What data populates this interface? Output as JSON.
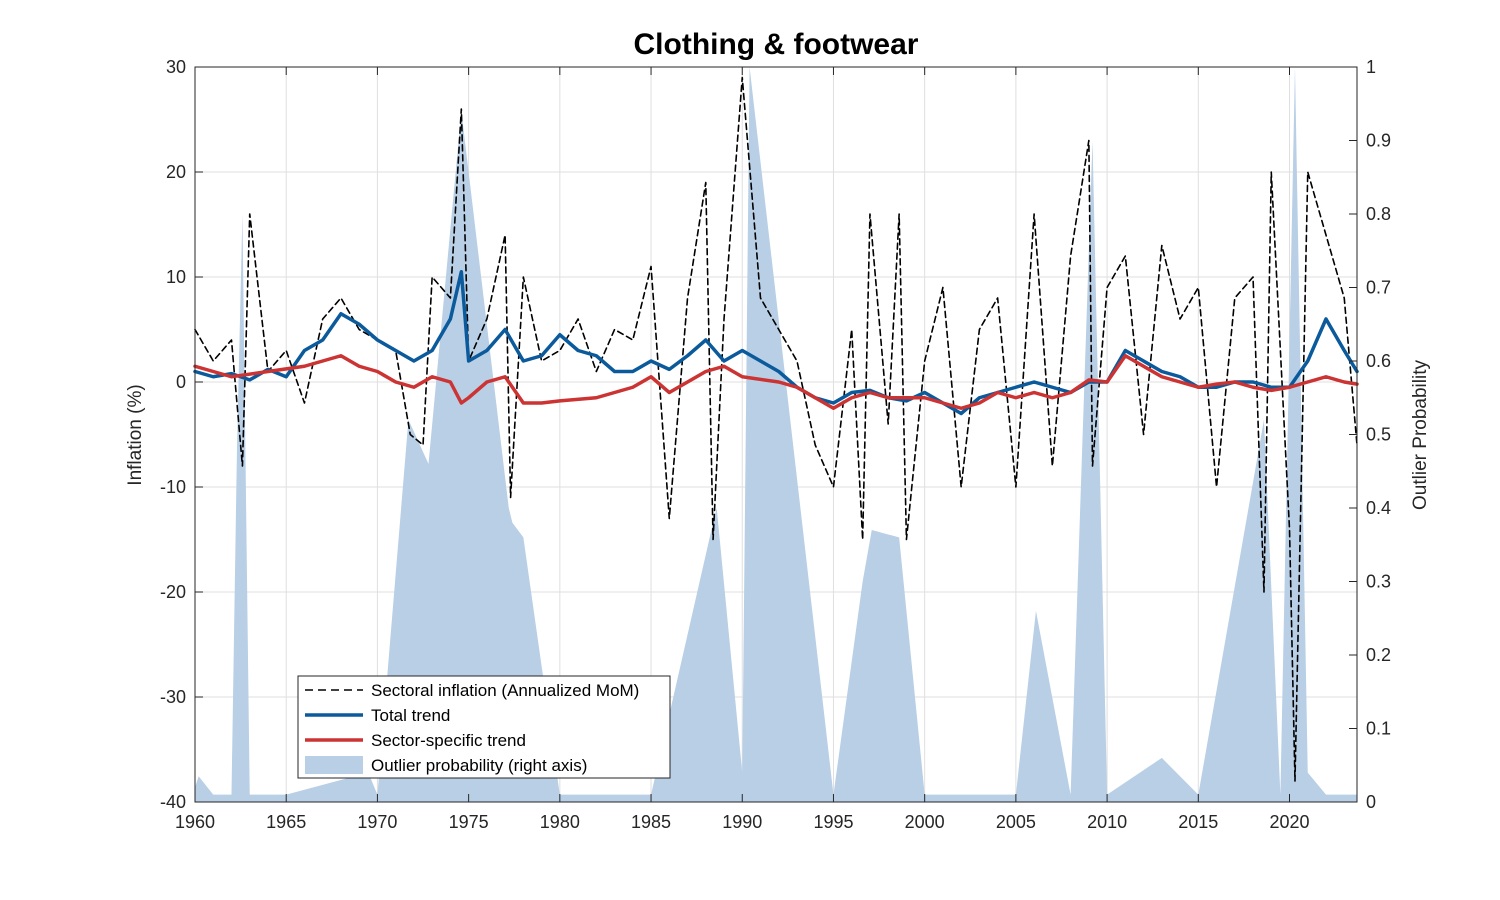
{
  "chart_data": {
    "type": "line",
    "title": "Clothing & footwear",
    "xlabel": "",
    "ylabel": "Inflation (%)",
    "ylabel_right": "Outlier Probability",
    "xlim": [
      1960,
      2023.7
    ],
    "ylim": [
      -40,
      30
    ],
    "ylim_right": [
      0,
      1
    ],
    "x_ticks": [
      1960,
      1965,
      1970,
      1975,
      1980,
      1985,
      1990,
      1995,
      2000,
      2005,
      2010,
      2015,
      2020
    ],
    "y_ticks": [
      -40,
      -30,
      -20,
      -10,
      0,
      10,
      20,
      30
    ],
    "y_ticks_right": [
      0,
      0.1,
      0.2,
      0.3,
      0.4,
      0.5,
      0.6,
      0.7,
      0.8,
      0.9,
      1
    ],
    "grid": true,
    "legend_position": "bottom-left",
    "colors": {
      "sectoral": "#000000",
      "total_trend": "#0a5a9c",
      "sector_trend": "#cc3333",
      "outlier": "#b8cfe6"
    },
    "series": [
      {
        "name": "Sectoral inflation (Annualized MoM)",
        "style": "dashed",
        "x": [
          1960,
          1961,
          1962,
          1962.6,
          1963,
          1964,
          1965,
          1966,
          1967,
          1968,
          1969,
          1970,
          1971,
          1971.8,
          1972.5,
          1973,
          1974,
          1974.6,
          1975,
          1976,
          1977,
          1977.3,
          1978,
          1979,
          1980,
          1981,
          1982,
          1983,
          1984,
          1985,
          1986,
          1987,
          1988,
          1988.4,
          1989,
          1990,
          1991,
          1992,
          1993,
          1994,
          1995,
          1996,
          1996.6,
          1997,
          1998,
          1998.6,
          1999,
          2000,
          2001,
          2002,
          2003,
          2004,
          2005,
          2006,
          2007,
          2008,
          2009,
          2009.2,
          2010,
          2011,
          2012,
          2013,
          2014,
          2015,
          2016,
          2017,
          2018,
          2018.6,
          2019,
          2020,
          2020.3,
          2021,
          2022,
          2023,
          2023.7
        ],
        "y": [
          5,
          2,
          4,
          -8,
          16,
          1,
          3,
          -2,
          6,
          8,
          5,
          4,
          3,
          -5,
          -6,
          10,
          8,
          26,
          2,
          6,
          14,
          -11,
          10,
          2,
          3,
          6,
          1,
          5,
          4,
          11,
          -13,
          8,
          19,
          -15,
          6,
          29,
          8,
          5,
          2,
          -6,
          -10,
          5,
          -15,
          16,
          -4,
          16,
          -15,
          2,
          9,
          -10,
          5,
          8,
          -10,
          16,
          -8,
          12,
          23,
          -8,
          9,
          12,
          -5,
          13,
          6,
          9,
          -10,
          8,
          10,
          -20,
          20,
          -14,
          -38,
          20,
          14,
          8,
          -6
        ]
      },
      {
        "name": "Total trend",
        "style": "solid",
        "x": [
          1960,
          1961,
          1962,
          1963,
          1964,
          1965,
          1966,
          1967,
          1968,
          1969,
          1970,
          1971,
          1972,
          1973,
          1974,
          1974.6,
          1975,
          1976,
          1977,
          1978,
          1979,
          1980,
          1981,
          1982,
          1983,
          1984,
          1985,
          1986,
          1987,
          1988,
          1989,
          1990,
          1991,
          1992,
          1993,
          1994,
          1995,
          1996,
          1997,
          1998,
          1999,
          2000,
          2001,
          2002,
          2003,
          2004,
          2005,
          2006,
          2007,
          2008,
          2009,
          2010,
          2011,
          2012,
          2013,
          2014,
          2015,
          2016,
          2017,
          2018,
          2019,
          2020,
          2021,
          2022,
          2023,
          2023.7
        ],
        "y": [
          1,
          0.5,
          0.8,
          0.2,
          1.2,
          0.5,
          3,
          4,
          6.5,
          5.5,
          4,
          3,
          2,
          3,
          6,
          10.5,
          2,
          3,
          5,
          2,
          2.5,
          4.5,
          3,
          2.5,
          1,
          1,
          2,
          1.2,
          2.5,
          4,
          2,
          3,
          2,
          1,
          -0.5,
          -1.5,
          -2,
          -1,
          -0.8,
          -1.5,
          -1.8,
          -1,
          -2,
          -3,
          -1.5,
          -1,
          -0.5,
          0,
          -0.5,
          -1,
          0,
          0,
          3,
          2,
          1,
          0.5,
          -0.5,
          -0.5,
          0,
          0,
          -0.5,
          -0.5,
          2,
          6,
          3,
          1
        ]
      },
      {
        "name": "Sector-specific trend",
        "style": "solid",
        "x": [
          1960,
          1962,
          1964,
          1966,
          1968,
          1969,
          1970,
          1971,
          1972,
          1973,
          1974,
          1974.6,
          1975,
          1976,
          1977,
          1978,
          1979,
          1980,
          1982,
          1983,
          1984,
          1985,
          1986,
          1987,
          1988,
          1989,
          1990,
          1992,
          1993,
          1994,
          1995,
          1996,
          1997,
          1998,
          2000,
          2001,
          2002,
          2003,
          2004,
          2005,
          2006,
          2007,
          2008,
          2009,
          2010,
          2011,
          2012,
          2013,
          2014,
          2015,
          2016,
          2017,
          2018,
          2019,
          2020,
          2021,
          2022,
          2023,
          2023.7
        ],
        "y": [
          1.5,
          0.5,
          1,
          1.5,
          2.5,
          1.5,
          1,
          0,
          -0.5,
          0.5,
          0,
          -2,
          -1.5,
          0,
          0.5,
          -2,
          -2,
          -1.8,
          -1.5,
          -1,
          -0.5,
          0.5,
          -1,
          0,
          1,
          1.5,
          0.5,
          0,
          -0.5,
          -1.5,
          -2.5,
          -1.5,
          -1,
          -1.5,
          -1.5,
          -2,
          -2.5,
          -2,
          -1,
          -1.5,
          -1,
          -1.5,
          -1,
          0.2,
          0,
          2.5,
          1.5,
          0.5,
          0,
          -0.5,
          -0.2,
          0,
          -0.5,
          -0.8,
          -0.5,
          0,
          0.5,
          0,
          -0.2
        ]
      },
      {
        "name": "Outlier probability (right axis)",
        "axis": "right",
        "style": "area",
        "x": [
          1960,
          1960.2,
          1961,
          1962,
          1962.3,
          1962.6,
          1963,
          1965,
          1969.5,
          1970,
          1971.7,
          1972.8,
          1974.6,
          1977.2,
          1977.4,
          1978,
          1980,
          1985,
          1988.4,
          1988.6,
          1990,
          1990.4,
          1995,
          1996.6,
          1997.1,
          1998.6,
          2000,
          2005,
          2006.1,
          2008,
          2009.2,
          2010,
          2013,
          2015,
          2018.6,
          2019.5,
          2020.3,
          2021,
          2022,
          2023.7
        ],
        "y": [
          0.02,
          0.035,
          0.01,
          0.01,
          0.48,
          0.8,
          0.01,
          0.01,
          0.04,
          0.01,
          0.52,
          0.46,
          0.94,
          0.4,
          0.38,
          0.36,
          0.01,
          0.01,
          0.38,
          0.4,
          0.04,
          1.0,
          0.01,
          0.3,
          0.37,
          0.36,
          0.01,
          0.01,
          0.26,
          0.01,
          0.9,
          0.01,
          0.06,
          0.01,
          0.52,
          0.01,
          1.0,
          0.04,
          0.01,
          0.01
        ]
      }
    ]
  }
}
